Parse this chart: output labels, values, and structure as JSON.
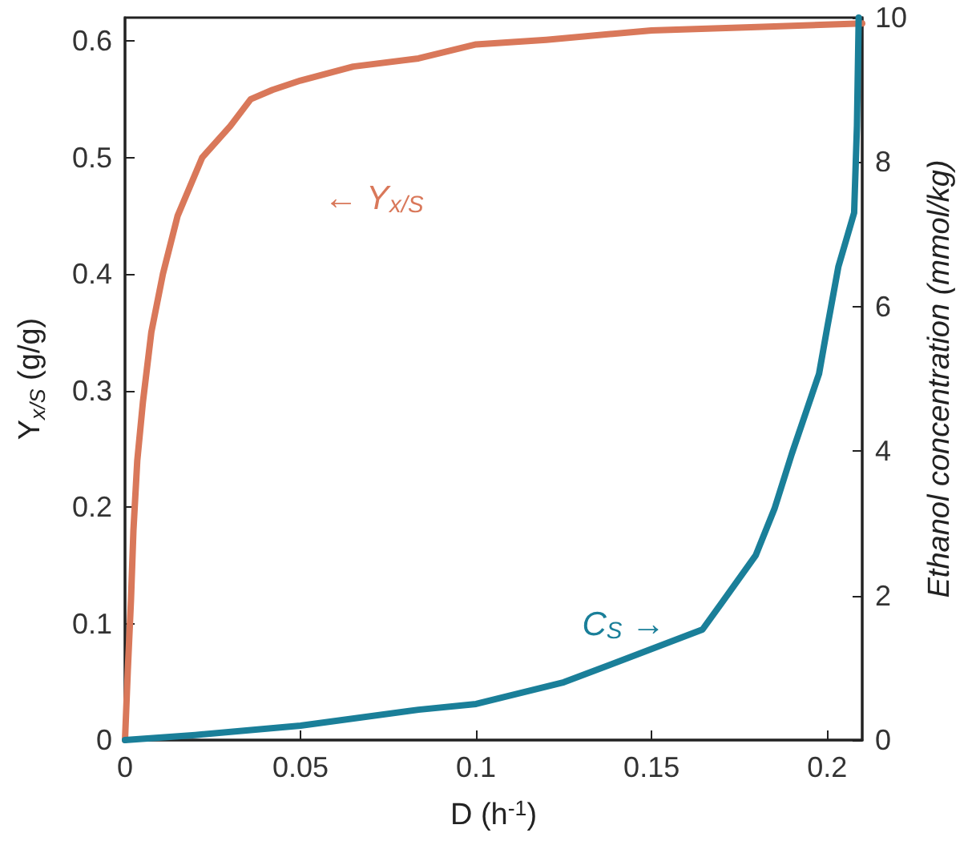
{
  "chart_data": {
    "type": "line",
    "xlabel": "D (h$^{-1}$)",
    "ylabel": "Y$_{x/S}$ (g/g)",
    "y2label": "Ethanol concentration (mmol/kg)",
    "series": [
      {
        "color": "#d9785a",
        "x": [
          0,
          0.0008,
          0.0017,
          0.0024,
          0.0035,
          0.0051,
          0.0075,
          0.0108,
          0.015,
          0.022,
          0.03,
          0.0358,
          0.042,
          0.05,
          0.065,
          0.0836,
          0.1,
          0.12,
          0.15,
          0.18,
          0.21
        ],
        "values": [
          0,
          0.06,
          0.12,
          0.18,
          0.24,
          0.29,
          0.35,
          0.4,
          0.45,
          0.5,
          0.527,
          0.55,
          0.558,
          0.566,
          0.578,
          0.585,
          0.597,
          0.601,
          0.609,
          0.612,
          0.615
        ]
      },
      {
        "color": "#1a7f99",
        "x": [
          0,
          0.02,
          0.05,
          0.0836,
          0.1,
          0.125,
          0.15,
          0.1645,
          0.17,
          0.1797,
          0.185,
          0.19,
          0.1977,
          0.2,
          0.2032,
          0.2077,
          0.2085,
          0.209
        ],
        "axis": "y2",
        "values": [
          0,
          0.07,
          0.2,
          0.42,
          0.5,
          0.8,
          1.26,
          1.53,
          1.9,
          2.56,
          3.2,
          3.97,
          5.07,
          5.7,
          6.55,
          7.3,
          8.5,
          10
        ]
      }
    ],
    "xlim": [
      0,
      0.21
    ],
    "xticks": [
      0,
      0.05,
      0.1,
      0.15,
      0.2
    ],
    "ylim": [
      0,
      0.62
    ],
    "yticks": [
      0,
      0.1,
      0.2,
      0.3,
      0.4,
      0.5,
      0.6
    ],
    "y2lim": [
      0,
      10
    ],
    "y2ticks": [
      0,
      2,
      4,
      6,
      8,
      10
    ],
    "grid": false,
    "marker": "none",
    "line_style": "solid",
    "annotations": [
      "← Y$_{x/S}$",
      "C$_{S}$ →"
    ]
  }
}
